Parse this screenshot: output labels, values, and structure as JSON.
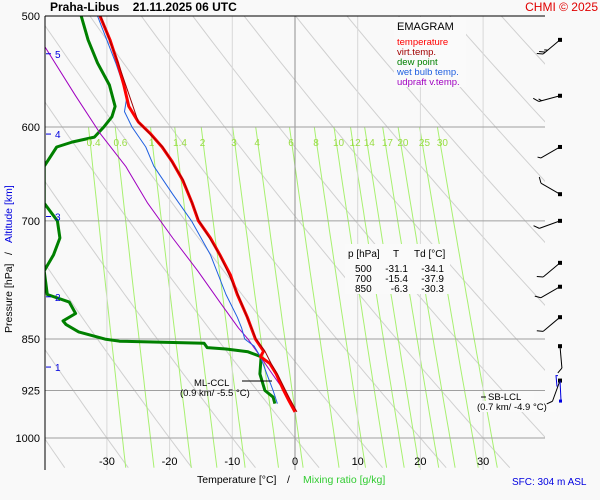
{
  "header": {
    "station": "Praha-Libus",
    "datetime": "21.11.2025 06 UTC",
    "credit": "CHMI © 2025"
  },
  "chart_data": {
    "type": "line",
    "title": "EMAGRAM",
    "xlabel": "Temperature [°C]",
    "xlabel_sep": "/",
    "xlabel2": "Mixing ratio [g/kg]",
    "ylabel": "Pressure [hPa]",
    "ylabel_sep": "/",
    "ylabel2": "Altitude [km]",
    "xlim": [
      -40,
      40
    ],
    "ylim": [
      1000,
      500
    ],
    "x_ticks": [
      -30,
      -20,
      -10,
      0,
      10,
      20,
      30
    ],
    "y_ticks": [
      500,
      600,
      700,
      850,
      925,
      1000
    ],
    "altitude_ticks": [
      {
        "km": "1",
        "p": 890
      },
      {
        "km": "2",
        "p": 793
      },
      {
        "km": "3",
        "p": 695
      },
      {
        "km": "4",
        "p": 607
      },
      {
        "km": "5",
        "p": 532
      }
    ],
    "mixing_ratio_labels": [
      "0.4",
      "0.6",
      "1",
      "1.4",
      "2",
      "3",
      "4",
      "6",
      "8",
      "10",
      "12",
      "14",
      "17",
      "20",
      "25",
      "30"
    ],
    "legend": [
      {
        "label": "temperature",
        "color": "#ff0000"
      },
      {
        "label": "virt.temp.",
        "color": "#a00000"
      },
      {
        "label": "dew point",
        "color": "#008000"
      },
      {
        "label": "wet bulb temp.",
        "color": "#2060e0"
      },
      {
        "label": "udpraft v.temp.",
        "color": "#a000c0"
      }
    ],
    "series": [
      {
        "name": "temperature",
        "points": [
          [
            -31.1,
            500
          ],
          [
            -29.5,
            520
          ],
          [
            -28.3,
            540
          ],
          [
            -27.3,
            560
          ],
          [
            -26.5,
            580
          ],
          [
            -25.0,
            595
          ],
          [
            -23.0,
            607
          ],
          [
            -21.2,
            620
          ],
          [
            -19.6,
            635
          ],
          [
            -17.9,
            655
          ],
          [
            -16.4,
            680
          ],
          [
            -15.4,
            700
          ],
          [
            -13.5,
            720
          ],
          [
            -12.0,
            740
          ],
          [
            -10.3,
            765
          ],
          [
            -9.2,
            790
          ],
          [
            -7.6,
            820
          ],
          [
            -6.3,
            850
          ],
          [
            -5.0,
            867
          ],
          [
            -5.5,
            875
          ],
          [
            -4.0,
            885
          ],
          [
            -3.0,
            900
          ],
          [
            -1.8,
            925
          ],
          [
            -1.0,
            940
          ],
          [
            0.0,
            958
          ]
        ]
      },
      {
        "name": "virt.temp.",
        "points": [
          [
            -31.0,
            500
          ],
          [
            -28.2,
            540
          ],
          [
            -25.0,
            595
          ],
          [
            -21.1,
            620
          ],
          [
            -17.8,
            655
          ],
          [
            -15.3,
            700
          ],
          [
            -12.0,
            740
          ],
          [
            -9.1,
            790
          ],
          [
            -6.2,
            850
          ],
          [
            -4.8,
            867
          ],
          [
            -3.8,
            885
          ],
          [
            -2.8,
            900
          ],
          [
            -1.5,
            925
          ],
          [
            -0.7,
            940
          ],
          [
            0.3,
            958
          ]
        ]
      },
      {
        "name": "dew point",
        "points": [
          [
            -34.1,
            500
          ],
          [
            -33.0,
            520
          ],
          [
            -31.5,
            540
          ],
          [
            -29.6,
            560
          ],
          [
            -28.7,
            580
          ],
          [
            -29.2,
            590
          ],
          [
            -30.5,
            600
          ],
          [
            -32.0,
            610
          ],
          [
            -35.5,
            615
          ],
          [
            -38.0,
            620
          ],
          [
            -40,
            640
          ],
          [
            -40,
            680
          ],
          [
            -37.9,
            700
          ],
          [
            -37.5,
            720
          ],
          [
            -38.5,
            740
          ],
          [
            -40,
            760
          ],
          [
            -39.5,
            790
          ],
          [
            -36.0,
            800
          ],
          [
            -35.0,
            815
          ],
          [
            -37.0,
            825
          ],
          [
            -36.5,
            830
          ],
          [
            -34.5,
            840
          ],
          [
            -30.3,
            850
          ],
          [
            -28.0,
            853
          ],
          [
            -14.5,
            856
          ],
          [
            -14.0,
            862
          ],
          [
            -11.0,
            864
          ],
          [
            -7.5,
            868
          ],
          [
            -5.4,
            875
          ],
          [
            -5.6,
            900
          ],
          [
            -4.8,
            925
          ],
          [
            -3.5,
            935
          ],
          [
            -3.2,
            945
          ]
        ]
      },
      {
        "name": "wet bulb temp.",
        "points": [
          [
            -31.5,
            500
          ],
          [
            -28.6,
            540
          ],
          [
            -26.8,
            570
          ],
          [
            -27.2,
            585
          ],
          [
            -26.0,
            600
          ],
          [
            -23.8,
            620
          ],
          [
            -22.5,
            640
          ],
          [
            -19.5,
            670
          ],
          [
            -16.5,
            700
          ],
          [
            -13.5,
            740
          ],
          [
            -11.0,
            790
          ],
          [
            -9.2,
            820
          ],
          [
            -8.5,
            835
          ],
          [
            -8.0,
            850
          ],
          [
            -6.5,
            860
          ],
          [
            -5.5,
            875
          ],
          [
            -4.5,
            900
          ],
          [
            -3.5,
            925
          ],
          [
            -2.8,
            945
          ]
        ]
      },
      {
        "name": "udpraft v.temp.",
        "points": [
          [
            -40,
            525
          ],
          [
            -35,
            570
          ],
          [
            -31,
            607
          ],
          [
            -27,
            640
          ],
          [
            -23.5,
            680
          ],
          [
            -19.5,
            720
          ],
          [
            -15.5,
            760
          ],
          [
            -12,
            800
          ],
          [
            -9.0,
            835
          ],
          [
            -7.5,
            850
          ],
          [
            -5.5,
            875
          ],
          [
            -4.0,
            895
          ],
          [
            -2.5,
            915
          ],
          [
            -1.0,
            935
          ],
          [
            -0.3,
            950
          ]
        ]
      }
    ],
    "annotations": [
      {
        "label": "ML-CCL",
        "detail": "(0.9 km/ -5.5 °C)",
        "p": 875
      },
      {
        "label": "SB-LCL",
        "detail": "(0.7 km/ -4.9 °C)",
        "p": 910
      }
    ],
    "table": {
      "headers": [
        "p [hPa]",
        "T",
        "Td [°C]"
      ],
      "rows": [
        [
          "500",
          "-31.1",
          "-34.1"
        ],
        [
          "700",
          "-15.4",
          "-37.9"
        ],
        [
          "850",
          "-6.3",
          "-30.3"
        ]
      ]
    },
    "wind_barbs": [
      {
        "p": 520,
        "dir": 230,
        "kt": 25
      },
      {
        "p": 570,
        "dir": 255,
        "kt": 15
      },
      {
        "p": 620,
        "dir": 240,
        "kt": 5
      },
      {
        "p": 670,
        "dir": 300,
        "kt": 10
      },
      {
        "p": 700,
        "dir": 250,
        "kt": 10
      },
      {
        "p": 750,
        "dir": 230,
        "kt": 10
      },
      {
        "p": 780,
        "dir": 240,
        "kt": 10
      },
      {
        "p": 820,
        "dir": 230,
        "kt": 10
      },
      {
        "p": 860,
        "dir": 175,
        "kt": 10
      },
      {
        "p": 910,
        "dir": 200,
        "kt": 10
      }
    ],
    "grid": true,
    "surface": "SFC: 304 m ASL"
  }
}
